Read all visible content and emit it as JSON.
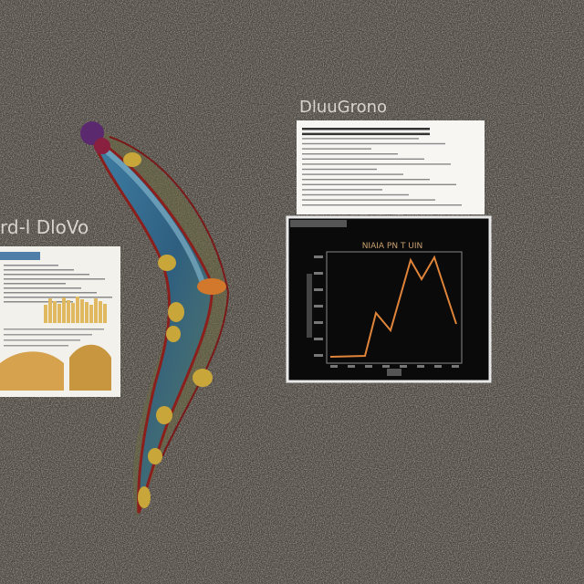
{
  "labels": {
    "left_caption": "rd-l DloVo",
    "right_caption": "DluuGrono",
    "chart_title": "NIAIA PN T UIN"
  }
}
